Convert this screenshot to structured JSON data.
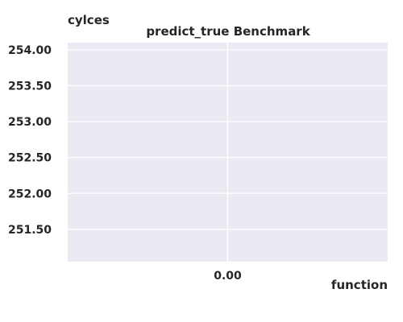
{
  "chart_data": {
    "type": "line",
    "title": "predict_true Benchmark",
    "ylabel": "cylces",
    "xlabel": "function",
    "ylim": [
      251.05,
      254.1
    ],
    "xlim": [
      -1,
      1
    ],
    "y_ticks": [
      "251.50",
      "252.00",
      "252.50",
      "253.00",
      "253.50",
      "254.00"
    ],
    "x_ticks": [
      "0.00"
    ],
    "series": [],
    "grid": true,
    "colors": {
      "plot_bg": "#eaeaf2",
      "grid": "#ffffff",
      "text": "#262626"
    }
  }
}
